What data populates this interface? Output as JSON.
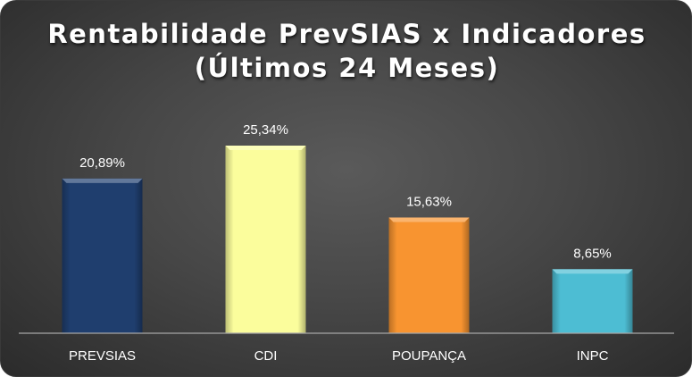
{
  "chart_data": {
    "type": "bar",
    "title": [
      "Rentabilidade PrevSIAS x Indicadores",
      "(Últimos 24 Meses)"
    ],
    "categories": [
      "PREVSIAS",
      "CDI",
      "POUPANÇA",
      "INPC"
    ],
    "values": [
      20.89,
      25.34,
      15.63,
      8.65
    ],
    "data_labels": [
      "20,89%",
      "25,34%",
      "15,63%",
      "8,65%"
    ],
    "colors": [
      "#1f3e6e",
      "#fbfd9c",
      "#f89430",
      "#4dbdd3"
    ],
    "ylim": [
      0,
      30
    ],
    "grid": false,
    "legend": "none",
    "xlabel": "",
    "ylabel": ""
  }
}
